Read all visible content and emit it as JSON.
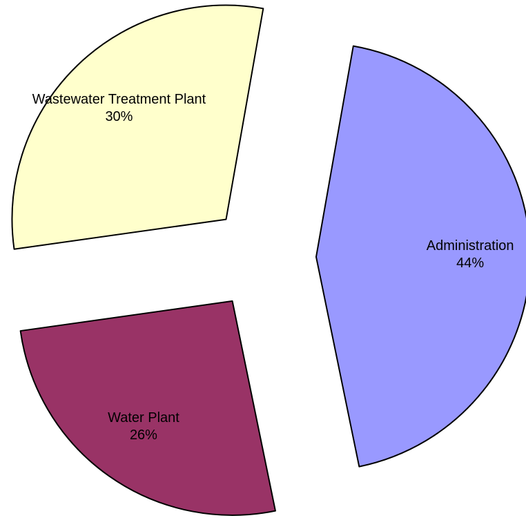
{
  "chart_data": {
    "type": "pie",
    "categories": [
      "Administration",
      "Water Plant",
      "Wastewater Treatment Plant"
    ],
    "values": [
      44,
      26,
      30
    ],
    "value_labels": [
      "44%",
      "26%",
      "30%"
    ],
    "colors": [
      "#9999FF",
      "#993366",
      "#FFFFCC"
    ],
    "exploded": true
  }
}
